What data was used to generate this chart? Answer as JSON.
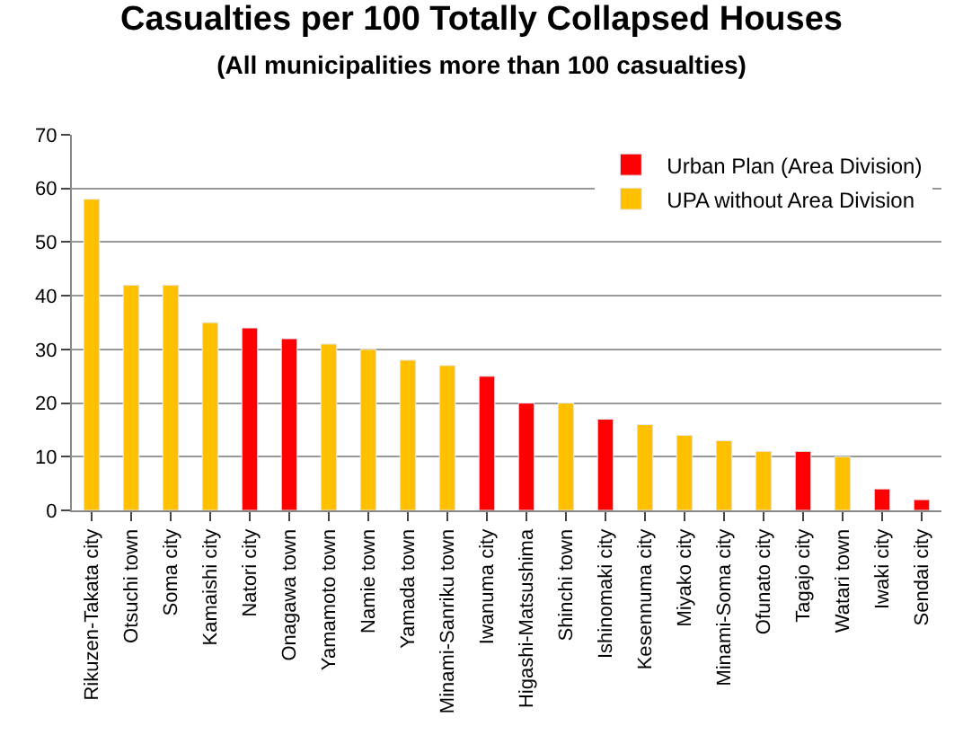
{
  "chart_data": {
    "type": "bar",
    "title": "Casualties per 100 Totally Collapsed Houses",
    "subtitle": "(All municipalities more than 100 casualties)",
    "categories": [
      "Rikuzen-Takata city",
      "Otsuchi town",
      "Soma city",
      "Kamaishi city",
      "Natori city",
      "Onagawa town",
      "Yamamoto town",
      "Namie town",
      "Yamada town",
      "Minami-Sanriku town",
      "Iwanuma city",
      "Higashi-Matsushima",
      "Shinchi town",
      "Ishinomaki city",
      "Kesennuma city",
      "Miyako city",
      "Minami-Soma city",
      "Ofunato city",
      "Tagajo city",
      "Watari town",
      "Iwaki city",
      "Sendai city"
    ],
    "series": [
      {
        "name": "Urban Plan (Area Division)",
        "color": "#ff0000",
        "values": [
          null,
          null,
          null,
          null,
          34,
          32,
          null,
          null,
          null,
          null,
          25,
          20,
          null,
          17,
          null,
          null,
          null,
          null,
          11,
          null,
          4,
          2
        ]
      },
      {
        "name": "UPA without Area Division",
        "color": "#ffc000",
        "values": [
          58,
          42,
          42,
          35,
          null,
          null,
          31,
          30,
          28,
          27,
          null,
          null,
          20,
          null,
          16,
          14,
          13,
          11,
          null,
          10,
          null,
          null
        ]
      }
    ],
    "ylim": [
      0,
      70
    ],
    "yticks": [
      0,
      10,
      20,
      30,
      40,
      50,
      60,
      70
    ],
    "grid": "y",
    "legend": "top right"
  }
}
